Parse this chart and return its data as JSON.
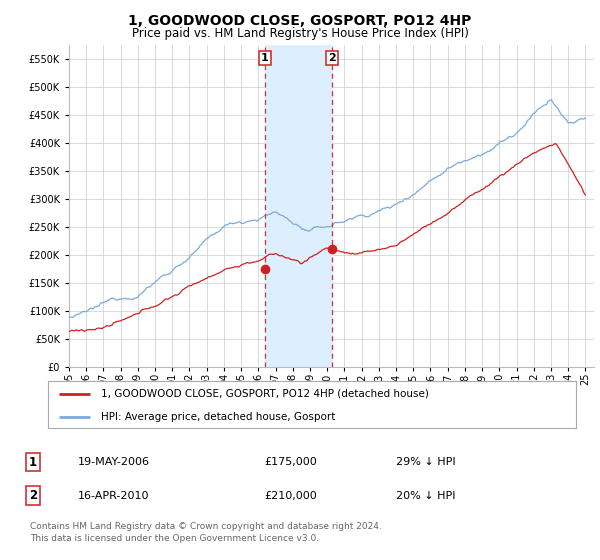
{
  "title": "1, GOODWOOD CLOSE, GOSPORT, PO12 4HP",
  "subtitle": "Price paid vs. HM Land Registry's House Price Index (HPI)",
  "ylim": [
    0,
    575000
  ],
  "yticks": [
    0,
    50000,
    100000,
    150000,
    200000,
    250000,
    300000,
    350000,
    400000,
    450000,
    500000,
    550000
  ],
  "xlim_start": 1995,
  "xlim_end": 2025.5,
  "hpi_color": "#7aaadd",
  "price_color": "#cc2222",
  "marker1_year": 2006.38,
  "marker2_year": 2010.29,
  "marker1_price": 175000,
  "marker2_price": 210000,
  "span_color": "#ddeeff",
  "legend_label_red": "1, GOODWOOD CLOSE, GOSPORT, PO12 4HP (detached house)",
  "legend_label_blue": "HPI: Average price, detached house, Gosport",
  "table_row1_num": "1",
  "table_row1_date": "19-MAY-2006",
  "table_row1_price": "£175,000",
  "table_row1_hpi": "29% ↓ HPI",
  "table_row2_num": "2",
  "table_row2_date": "16-APR-2010",
  "table_row2_price": "£210,000",
  "table_row2_hpi": "20% ↓ HPI",
  "footnote_line1": "Contains HM Land Registry data © Crown copyright and database right 2024.",
  "footnote_line2": "This data is licensed under the Open Government Licence v3.0.",
  "bg_color": "#ffffff",
  "grid_color": "#cccccc",
  "title_fontsize": 10,
  "subtitle_fontsize": 8.5,
  "tick_fontsize": 7,
  "legend_fontsize": 7.5
}
